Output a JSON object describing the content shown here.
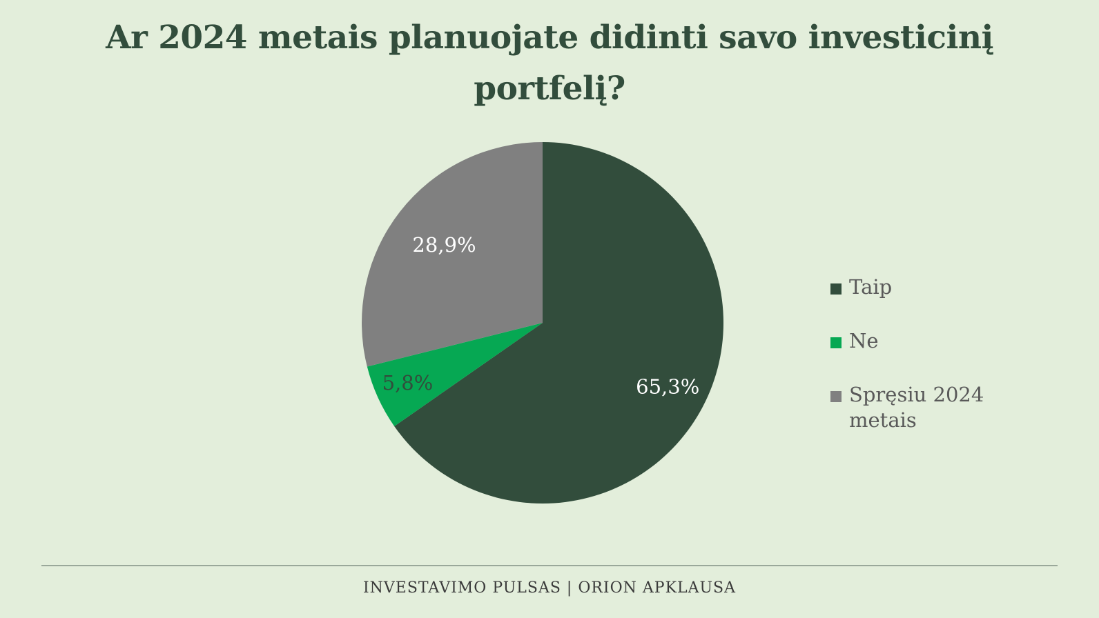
{
  "chart_data": {
    "type": "pie",
    "title": "Ar 2024 metais planuojate didinti savo investicinį portfelį?",
    "categories": [
      "Taip",
      "Ne",
      "Spręsiu 2024 metais"
    ],
    "values": [
      65.3,
      5.8,
      28.9
    ],
    "data_labels": [
      "65,3%",
      "5,8%",
      "28,9%"
    ],
    "colors": [
      "#324d3c",
      "#06a853",
      "#808080"
    ],
    "label_colors": [
      "#ffffff",
      "#324d3c",
      "#ffffff"
    ],
    "start_angle_deg": 0,
    "direction": "clockwise",
    "legend_position": "right"
  },
  "footer": {
    "text": "INVESTAVIMO PULSAS | ORION APKLAUSA"
  }
}
